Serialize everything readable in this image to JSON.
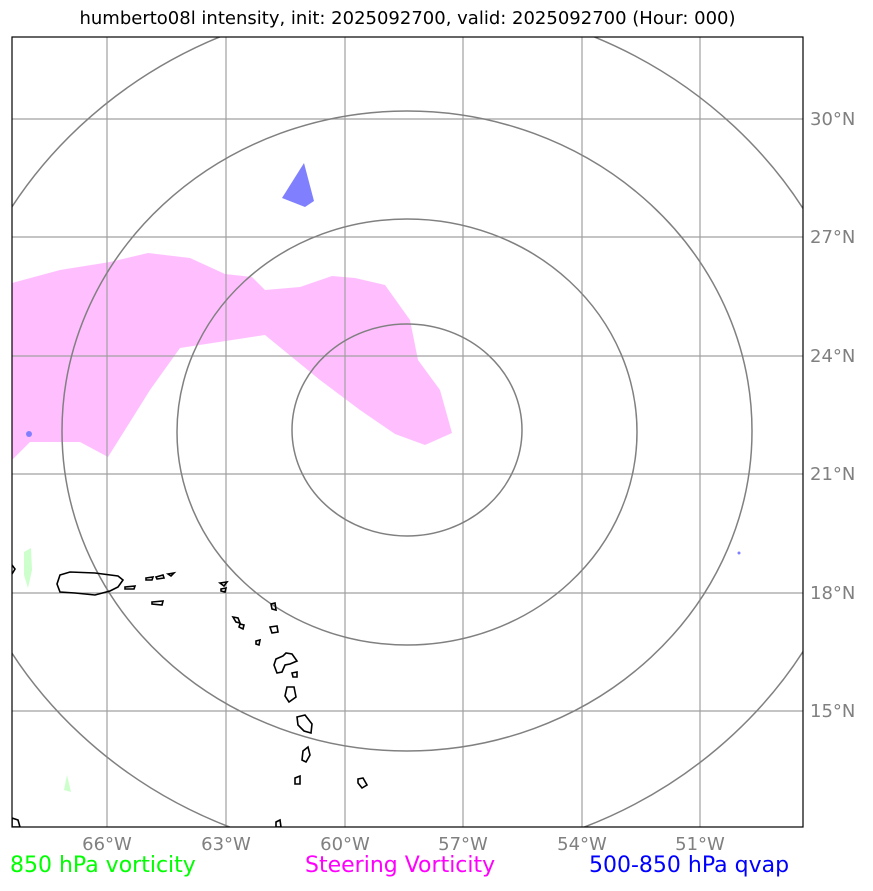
{
  "title": "humberto08l intensity, init: 2025092700, valid: 2025092700 (Hour: 000)",
  "map": {
    "lon_labels": [
      "66°W",
      "63°W",
      "60°W",
      "57°W",
      "54°W",
      "51°W"
    ],
    "lat_labels": [
      "30°N",
      "27°N",
      "24°N",
      "21°N",
      "18°N",
      "15°N"
    ],
    "colors": {
      "grid": "#a0a0a0",
      "range_rings": "#808080",
      "coastline": "#000000",
      "steering_vorticity_fill": "#ffbfff",
      "qvap_fill": "#8080ff",
      "vorticity_850_fill": "#ccffcc"
    }
  },
  "legend": [
    {
      "label": "850 hPa vorticity",
      "color": "#00ff00"
    },
    {
      "label": "Steering Vorticity",
      "color": "#ff00ff"
    },
    {
      "label": "500-850 hPa qvap",
      "color": "#0000ff"
    }
  ]
}
